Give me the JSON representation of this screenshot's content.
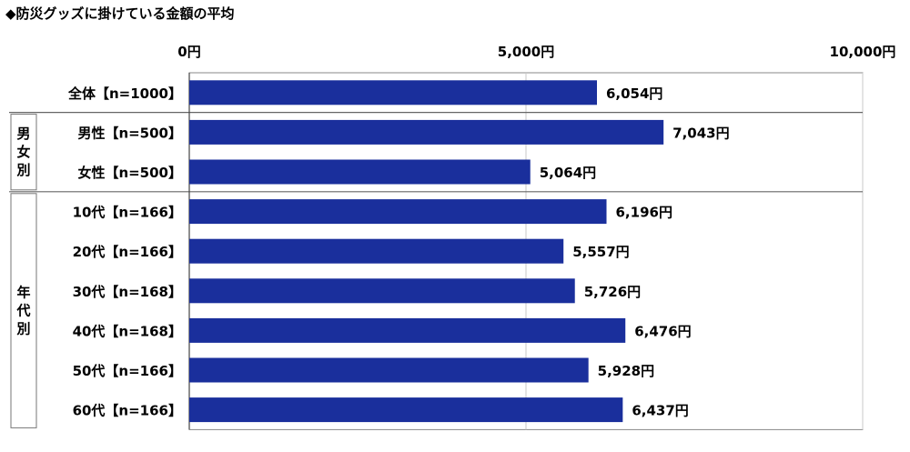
{
  "chart_data": {
    "type": "bar",
    "orientation": "horizontal",
    "title": "◆防災グッズに掛けている金額の平均",
    "categories": [
      "全体【n=1000】",
      "男性【n=500】",
      "女性【n=500】",
      "10代【n=166】",
      "20代【n=166】",
      "30代【n=168】",
      "40代【n=168】",
      "50代【n=166】",
      "60代【n=166】"
    ],
    "values": [
      6054,
      7043,
      5064,
      6196,
      5557,
      5726,
      6476,
      5928,
      6437
    ],
    "value_labels": [
      "6,054円",
      "7,043円",
      "5,064円",
      "6,196円",
      "5,557円",
      "5,726円",
      "6,476円",
      "5,928円",
      "6,437円"
    ],
    "groups": [
      {
        "label": "男女別",
        "categories": [
          "男性【n=500】",
          "女性【n=500】"
        ]
      },
      {
        "label": "年代別",
        "categories": [
          "10代【n=166】",
          "20代【n=166】",
          "30代【n=168】",
          "40代【n=168】",
          "50代【n=166】",
          "60代【n=166】"
        ]
      }
    ],
    "x_ticks": [
      0,
      5000,
      10000
    ],
    "x_tick_labels": [
      "0円",
      "5,000円",
      "10,000円"
    ],
    "xlim": [
      0,
      10000
    ],
    "axis_position": "top",
    "grid": true,
    "bar_color": "#1a2f9c"
  }
}
